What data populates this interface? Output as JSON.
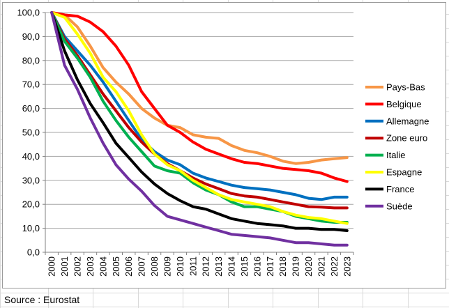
{
  "source_note": "Source : Eurostat",
  "chart_data": {
    "type": "line",
    "title": "",
    "xlabel": "",
    "ylabel": "",
    "x": [
      "2000",
      "2001",
      "2002",
      "2003",
      "2004",
      "2005",
      "2006",
      "2007",
      "2008",
      "2009",
      "2010",
      "2011",
      "2012",
      "2013",
      "2014",
      "2015",
      "2016",
      "2017",
      "2018",
      "2019",
      "2020",
      "2021",
      "2022",
      "2023"
    ],
    "ylim": [
      0,
      100
    ],
    "yticks": [
      "0,0",
      "10,0",
      "20,0",
      "30,0",
      "40,0",
      "50,0",
      "60,0",
      "70,0",
      "80,0",
      "90,0",
      "100,0"
    ],
    "grid": true,
    "legend_position": "right",
    "series": [
      {
        "name": "Pays-Bas",
        "color": "#f79646",
        "values": [
          100,
          99,
          94,
          86,
          77,
          71,
          66,
          60,
          56,
          53,
          52,
          49,
          48,
          47.5,
          44.5,
          42.5,
          41.5,
          40,
          38,
          37,
          37.5,
          38.5,
          39,
          39.5
        ]
      },
      {
        "name": "Belgique",
        "color": "#ff0000",
        "values": [
          100,
          99,
          98.5,
          96,
          92,
          86,
          78,
          67,
          60,
          53,
          50,
          46,
          43,
          41,
          39,
          37.5,
          37,
          36,
          35,
          34.5,
          34,
          33,
          31,
          29.5
        ]
      },
      {
        "name": "Allemagne",
        "color": "#0070c0",
        "values": [
          100,
          90,
          84,
          78,
          71,
          63,
          55,
          47,
          42,
          38.5,
          36.5,
          33,
          31,
          29.5,
          28,
          27,
          26.5,
          26,
          25,
          24,
          22.5,
          22,
          23,
          23
        ]
      },
      {
        "name": "Zone euro",
        "color": "#c00000",
        "values": [
          100,
          89,
          82,
          74,
          66,
          59,
          52,
          46,
          41,
          37,
          34,
          31,
          28.5,
          26.5,
          24.5,
          23.5,
          23,
          22,
          21,
          20,
          19,
          18.8,
          18.5,
          18.5
        ]
      },
      {
        "name": "Italie",
        "color": "#00b050",
        "values": [
          100,
          88,
          81,
          73,
          63,
          55,
          48,
          42,
          36,
          34,
          33,
          29,
          26,
          24,
          21,
          19,
          19,
          18,
          17,
          15,
          14,
          13,
          12.5,
          12.5
        ]
      },
      {
        "name": "Espagne",
        "color": "#ffff00",
        "values": [
          100,
          98,
          91,
          83,
          73,
          67,
          59,
          49,
          41,
          36.5,
          34,
          30,
          27,
          24,
          22,
          21,
          20,
          19,
          17,
          15.5,
          14.5,
          14,
          13,
          12
        ]
      },
      {
        "name": "France",
        "color": "#000000",
        "values": [
          100,
          84,
          72,
          62,
          54,
          45.5,
          39.5,
          33.5,
          28.5,
          24.5,
          21.5,
          19,
          18,
          16,
          14,
          13,
          12,
          11.5,
          11,
          10,
          10,
          9.5,
          9.5,
          9
        ]
      },
      {
        "name": "Suède",
        "color": "#7030a0",
        "values": [
          100,
          78,
          68,
          56,
          45.5,
          36.5,
          30.5,
          25.5,
          19.5,
          15,
          13.5,
          12,
          10.5,
          9,
          7.5,
          7,
          6.5,
          6,
          5,
          4,
          4,
          3.5,
          3,
          3
        ]
      }
    ]
  }
}
